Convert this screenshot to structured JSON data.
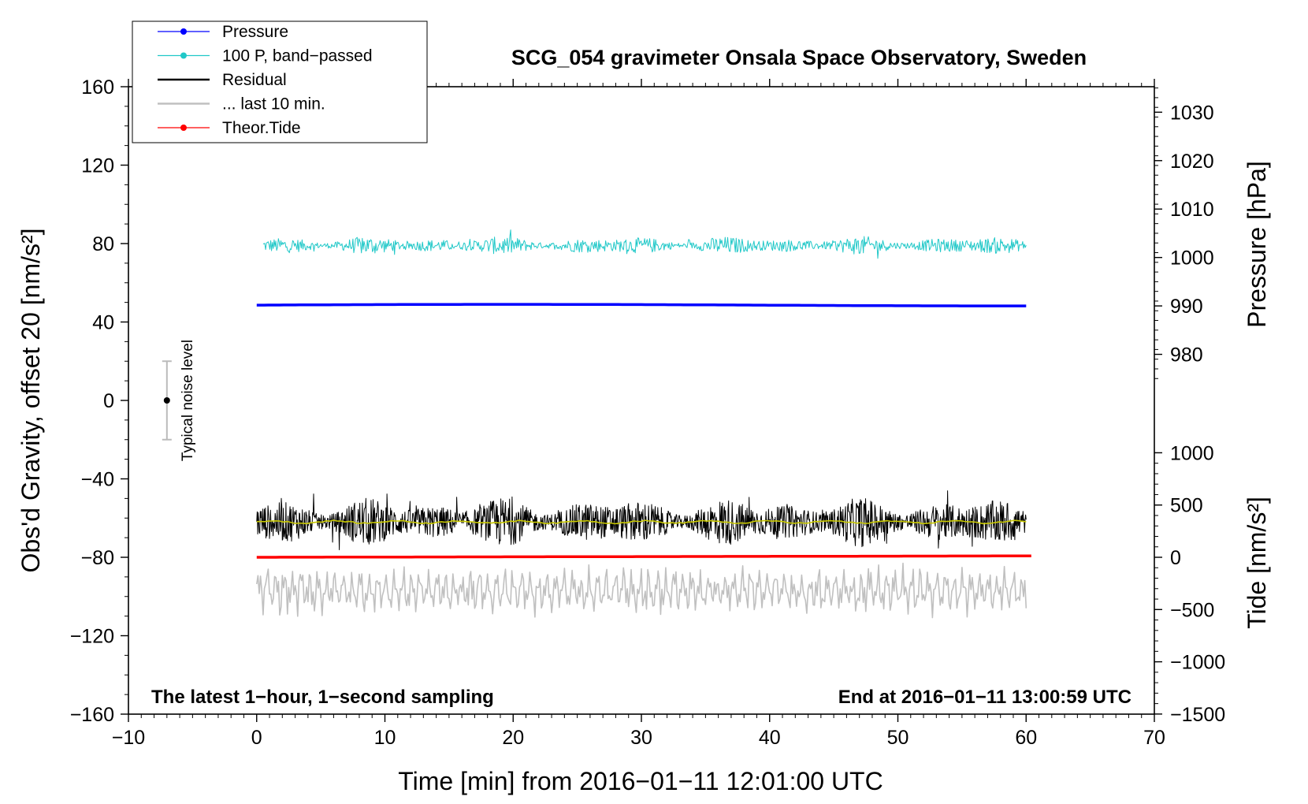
{
  "chart_data": {
    "type": "line",
    "title": "SCG_054 gravimeter Onsala Space Observatory, Sweden",
    "xlabel": "Time [min] from 2016−01−11 12:01:00 UTC",
    "ylabel_left": "Obs'd Gravity, offset 20 [nm/s²]",
    "ylabel_right_top": "Pressure [hPa]",
    "ylabel_right_bottom": "Tide [nm/s²]",
    "xlim": [
      -10,
      70
    ],
    "ylim": [
      -160,
      160
    ],
    "x_ticks": [
      "−10",
      "0",
      "10",
      "20",
      "30",
      "40",
      "50",
      "60",
      "70"
    ],
    "x_tick_values": [
      -10,
      0,
      10,
      20,
      30,
      40,
      50,
      60,
      70
    ],
    "y_ticks": [
      "160",
      "120",
      "80",
      "40",
      "0",
      "−40",
      "−80",
      "−120",
      "−160"
    ],
    "y_tick_values": [
      160,
      120,
      80,
      40,
      0,
      -40,
      -80,
      -120,
      -160
    ],
    "pressure_axis": {
      "ticks": [
        "1030",
        "1020",
        "1010",
        "1000",
        "990",
        "980"
      ],
      "values": [
        1030,
        1020,
        1010,
        1000,
        990,
        980
      ],
      "ref_value": 1030,
      "ref_gravity": 147,
      "gravity_per_unit": 2.47
    },
    "tide_axis": {
      "ticks": [
        "1000",
        "500",
        "0",
        "−500",
        "−1000",
        "−1500"
      ],
      "values": [
        1000,
        500,
        0,
        -500,
        -1000,
        -1500
      ],
      "ref_value": 0,
      "ref_gravity": -80,
      "gravity_per_unit": 0.0533
    },
    "series": [
      {
        "name": "Pressure",
        "color": "#0000ff",
        "x_start": 0,
        "x_end": 60,
        "level": 48.6,
        "amplitude": 0.4,
        "style": "thick-line"
      },
      {
        "name": "100 P, band−passed",
        "color": "#20c8c8",
        "x_start": 0.5,
        "x_end": 60,
        "level": 79,
        "amplitude": 3,
        "style": "noisy-line"
      },
      {
        "name": "Residual",
        "color": "#000000",
        "x_start": 0,
        "x_end": 60,
        "level": -62,
        "amplitude": 8,
        "style": "noisy-line"
      },
      {
        "name": "... last 10 min.",
        "color": "#c0c0c0",
        "x_start": 0,
        "x_end": 60,
        "level": -97,
        "amplitude": 9,
        "style": "oscillation"
      },
      {
        "name": "Theor.Tide",
        "color": "#ff0000",
        "x_start": 0,
        "x_end": 60.4,
        "level": -80,
        "end_level": -79.3,
        "style": "thick-line"
      },
      {
        "name": "smoothed",
        "color": "#c8c800",
        "x_start": 0,
        "x_end": 60,
        "level": -62,
        "amplitude": 0.6,
        "style": "smooth-line"
      }
    ],
    "noise_bar": {
      "x": -7,
      "center": 0,
      "half_range": 20,
      "label": "Typical noise level"
    },
    "annotations": {
      "left": "The latest 1−hour, 1−second sampling",
      "right": "End at 2016−01−11 13:00:59 UTC"
    },
    "legend": {
      "position": "top-left",
      "entries": [
        {
          "label": "Pressure",
          "color": "#0000ff",
          "marker": true
        },
        {
          "label": "100 P, band−passed",
          "color": "#20c8c8",
          "marker": true
        },
        {
          "label": "Residual",
          "color": "#000000",
          "marker": false
        },
        {
          "label": "... last 10 min.",
          "color": "#c0c0c0",
          "marker": false
        },
        {
          "label": "Theor.Tide",
          "color": "#ff0000",
          "marker": true
        }
      ]
    }
  }
}
